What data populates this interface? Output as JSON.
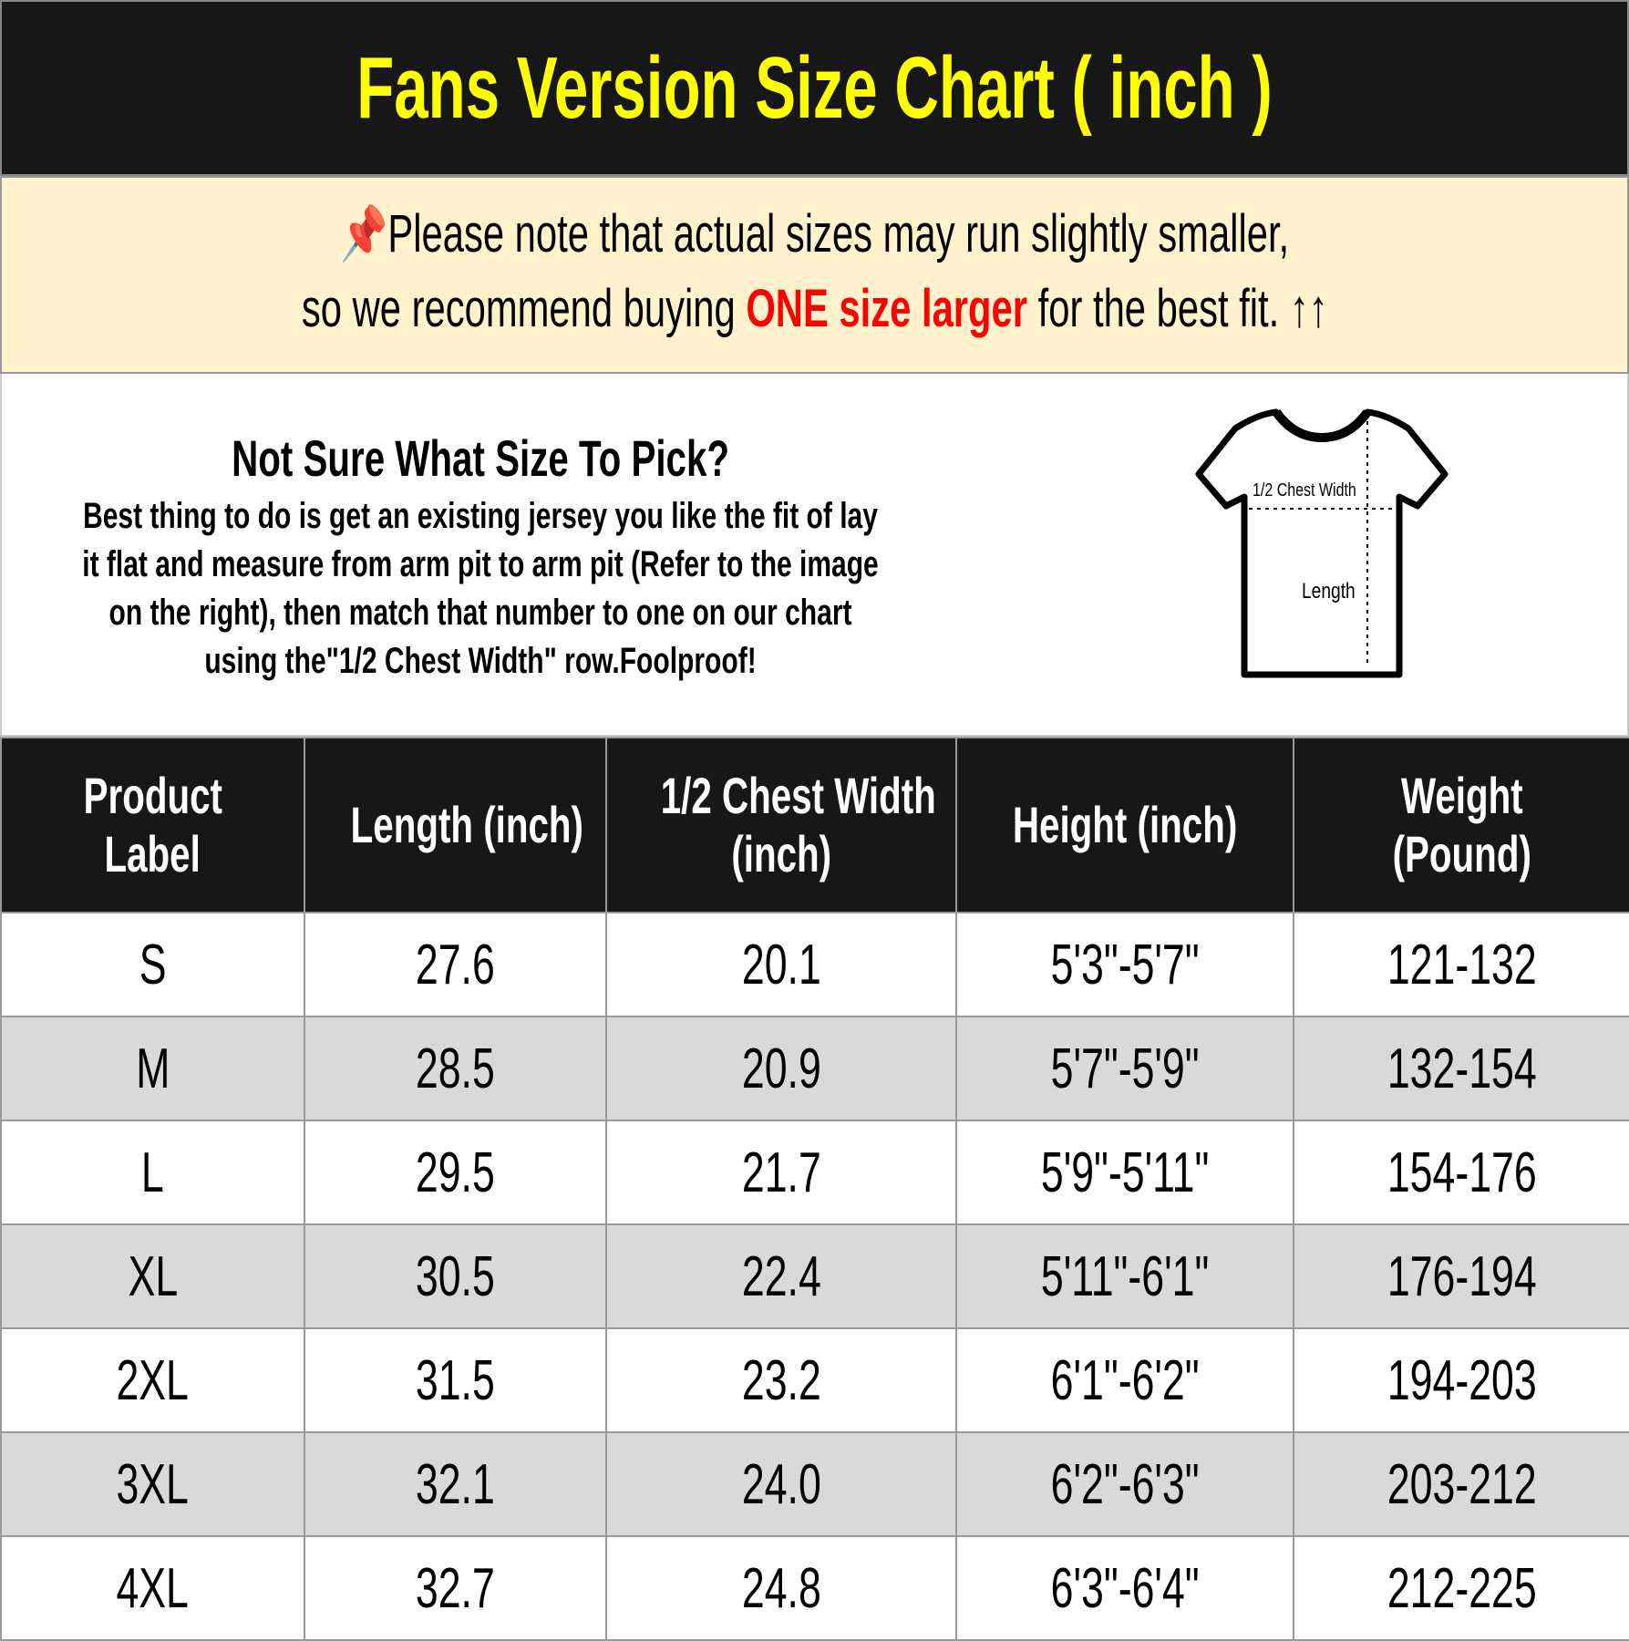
{
  "title": "Fans Version Size Chart ( inch )",
  "note": {
    "pin_icon": "pushpin-icon",
    "line1": "Please note that actual sizes may run slightly smaller,",
    "line2_pre": "so we recommend buying ",
    "line2_highlight": "ONE size larger",
    "line2_post": " for the best fit. ",
    "arrows": "↑↑",
    "highlight_color": "#ff0000"
  },
  "guide": {
    "heading": "Not Sure What Size To Pick?",
    "body": "Best thing to do is get an existing jersey you like the fit of lay it flat and measure from arm pit to arm pit (Refer to the image on the right), then match that number to one on our chart using the\"1/2 Chest Width\" row.Foolproof!",
    "diagram": {
      "chest_label": "1/2 Chest Width",
      "length_label": "Length"
    }
  },
  "table": {
    "headers": [
      [
        "Product",
        "Label"
      ],
      [
        "Length (inch)",
        ""
      ],
      [
        "1/2 Chest Width",
        "(inch)"
      ],
      [
        "Height (inch)",
        ""
      ],
      [
        "Weight",
        "(Pound)"
      ]
    ],
    "rows": [
      [
        "S",
        "27.6",
        "20.1",
        "5'3\"-5'7\"",
        "121-132"
      ],
      [
        "M",
        "28.5",
        "20.9",
        "5'7\"-5'9\"",
        "132-154"
      ],
      [
        "L",
        "29.5",
        "21.7",
        "5'9\"-5'11\"",
        "154-176"
      ],
      [
        "XL",
        "30.5",
        "22.4",
        "5'11\"-6'1\"",
        "176-194"
      ],
      [
        "2XL",
        "31.5",
        "23.2",
        "6'1\"-6'2\"",
        "194-203"
      ],
      [
        "3XL",
        "32.1",
        "24.0",
        "6'2\"-6'3\"",
        "203-212"
      ],
      [
        "4XL",
        "32.7",
        "24.8",
        "6'3\"-6'4\"",
        "212-225"
      ]
    ]
  }
}
